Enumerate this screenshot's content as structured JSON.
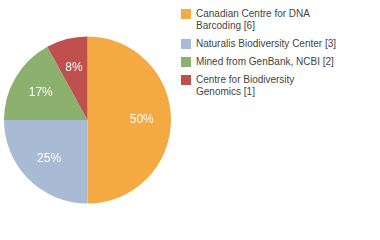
{
  "chart_data": {
    "type": "pie",
    "categories": [
      "Canadian Centre for DNA\nBarcoding [6]",
      "Naturalis Biodiversity Center [3]",
      "Mined from GenBank, NCBI [2]",
      "Centre for Biodiversity\nGenomics [1]"
    ],
    "values": [
      50,
      25,
      17,
      8
    ],
    "value_labels": [
      "50%",
      "25%",
      "17%",
      "8%"
    ],
    "colors": [
      "#F4A942",
      "#A8BAD4",
      "#8CB06E",
      "#C0504D"
    ],
    "legend": "right",
    "data_labels": true
  }
}
